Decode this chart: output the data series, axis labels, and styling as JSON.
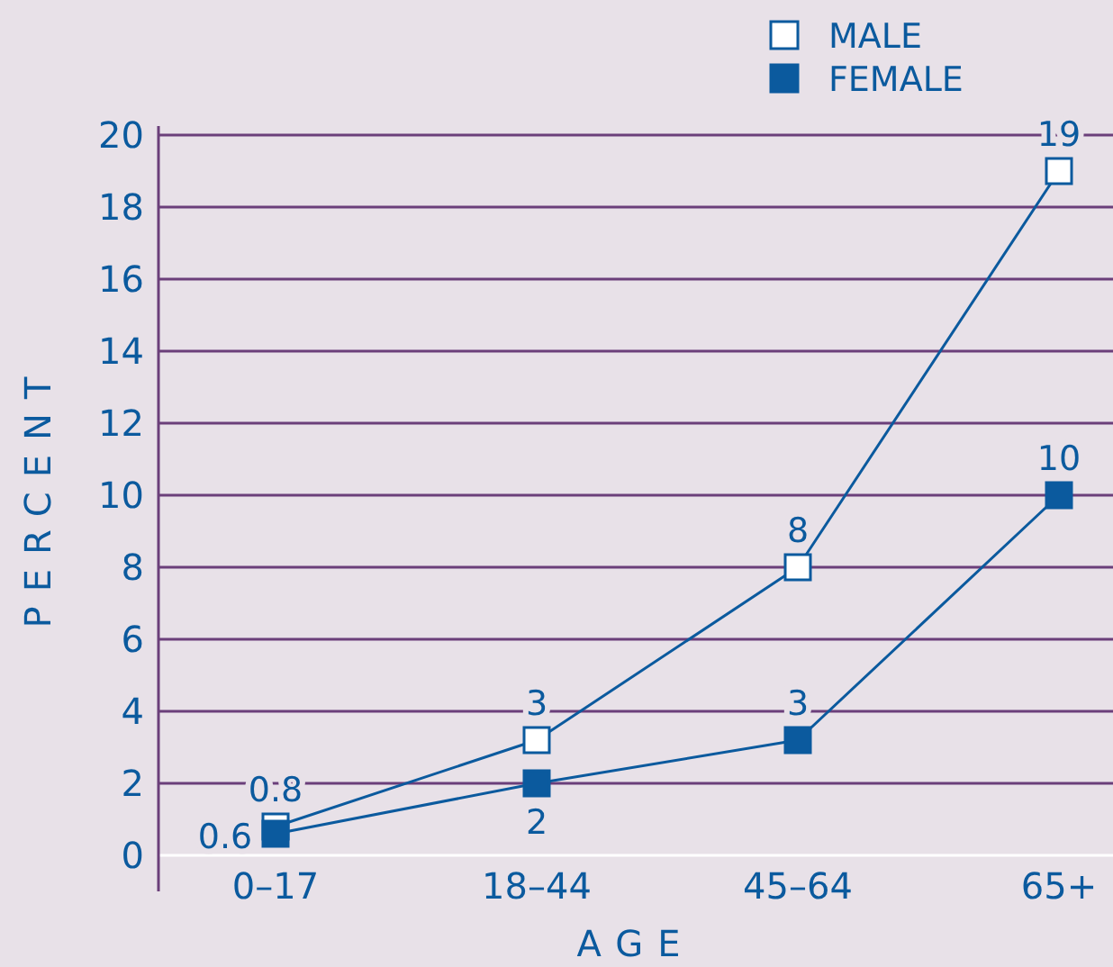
{
  "chart_data": {
    "type": "line",
    "ylabel": "PERCENT",
    "xlabel": "AGE",
    "categories": [
      "0–17",
      "18–44",
      "45–64",
      "65+"
    ],
    "series": [
      {
        "name": "MALE",
        "color": "#ffffff",
        "values": [
          0.8,
          3.2,
          8,
          19
        ],
        "value_labels": [
          "0.8",
          "3",
          "8",
          "19"
        ]
      },
      {
        "name": "FEMALE",
        "color": "#0b5a9e",
        "values": [
          0.6,
          2,
          3.2,
          10
        ],
        "value_labels": [
          "0.6",
          "2",
          "3",
          "10"
        ]
      }
    ],
    "ylim": [
      0,
      20
    ],
    "yticks": [
      0,
      2,
      4,
      6,
      8,
      10,
      12,
      14,
      16,
      18,
      20
    ],
    "grid": "y",
    "legend": "top right",
    "marker": "square"
  }
}
